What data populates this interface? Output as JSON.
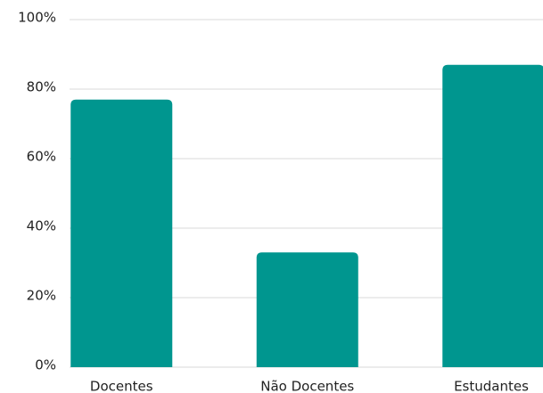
{
  "chart_data": {
    "type": "bar",
    "categories": [
      "Docentes",
      "Não Docentes",
      "Estudantes"
    ],
    "values": [
      77,
      33,
      87
    ],
    "color": "#00968f",
    "ylim": [
      0,
      100
    ],
    "yticks": [
      {
        "value": 0,
        "label": "0%"
      },
      {
        "value": 20,
        "label": "20%"
      },
      {
        "value": 40,
        "label": "40%"
      },
      {
        "value": 60,
        "label": "60%"
      },
      {
        "value": 80,
        "label": "80%"
      },
      {
        "value": 100,
        "label": "100%"
      }
    ],
    "grid": true
  }
}
